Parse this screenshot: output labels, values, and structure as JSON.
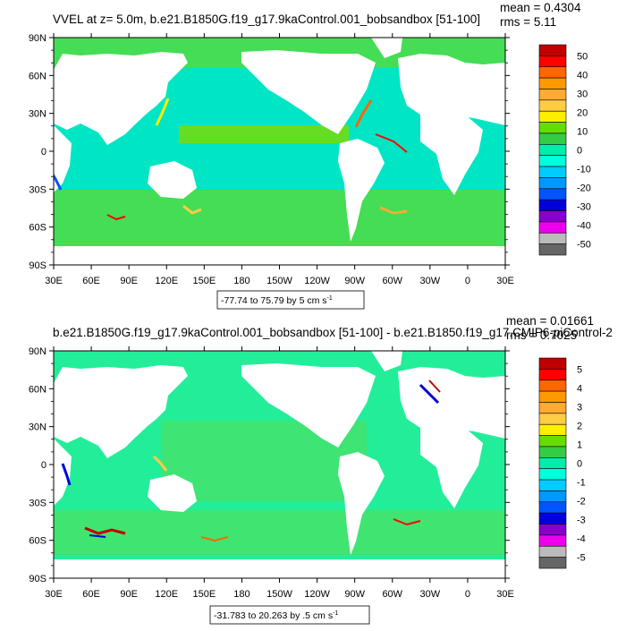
{
  "panels": [
    {
      "title": "VVEL at z=   5.0m, b.e21.B1850G.f19_g17.9kaControl.001_bobsandbox [51-100]",
      "stats": {
        "mean": "mean = 0.4304",
        "rms": "rms = 5.11"
      },
      "lat_labels": [
        "90N",
        "60N",
        "30N",
        "0",
        "30S",
        "60S",
        "90S"
      ],
      "lon_labels": [
        "30E",
        "60E",
        "90E",
        "120E",
        "150E",
        "180",
        "150W",
        "120W",
        "90W",
        "60W",
        "30W",
        "0",
        "30E"
      ],
      "range_label": "-77.74 to 75.79 by 5 cm s",
      "range_exp": "-1",
      "colorbar_labels": [
        "50",
        "40",
        "30",
        "20",
        "10",
        "0",
        "-10",
        "-20",
        "-30",
        "-40",
        "-50"
      ]
    },
    {
      "title": "b.e21.B1850G.f19_g17.9kaControl.001_bobsandbox [51-100] - b.e21.B1850.f19_g17.CMIP6-piControl-2",
      "stats": {
        "mean": "mean = 0.01661",
        "rms": "rms = 0.7025"
      },
      "lat_labels": [
        "90N",
        "60N",
        "30N",
        "0",
        "30S",
        "60S",
        "90S"
      ],
      "lon_labels": [
        "30E",
        "60E",
        "90E",
        "120E",
        "150E",
        "180",
        "150W",
        "120W",
        "90W",
        "60W",
        "30W",
        "0",
        "30E"
      ],
      "range_label": "-31.783 to 20.263 by .5 cm s",
      "range_exp": "-1",
      "colorbar_labels": [
        "5",
        "4",
        "3",
        "2",
        "1",
        "0",
        "-1",
        "-2",
        "-3",
        "-4",
        "-5"
      ]
    }
  ],
  "colors": {
    "palette_top_to_bottom": [
      "#c00000",
      "#ff0000",
      "#ff6600",
      "#ff9900",
      "#ffaa33",
      "#ffcc44",
      "#ffee00",
      "#66dd00",
      "#33cc44",
      "#00eeaa",
      "#00ffdd",
      "#00ccff",
      "#0099ff",
      "#0055ff",
      "#0000dd",
      "#8800cc",
      "#ee00ee",
      "#bbbbbb",
      "#666666"
    ],
    "ocean_top": "#00e6c4",
    "ocean_top_band": "#44dd55",
    "ocean_bottom": "#22ee99",
    "ocean_bottom_band": "#55dd55",
    "land": "#ffffff"
  }
}
